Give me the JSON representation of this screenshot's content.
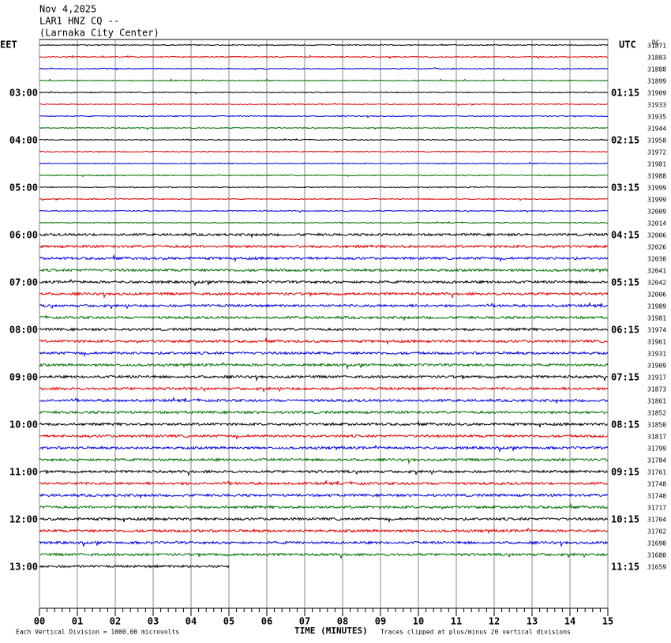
{
  "chart_data": {
    "type": "helicorder",
    "title_lines": [
      "Nov 4,2025",
      "LAR1 HNZ CQ --",
      "(Larnaka City Center)"
    ],
    "left_zone": "EET",
    "right_zone": "UTC",
    "corner_label": "DC",
    "left_labels": [
      "03:00",
      "04:00",
      "05:00",
      "06:00",
      "07:00",
      "08:00",
      "09:00",
      "10:00",
      "11:00",
      "12:00",
      "13:00"
    ],
    "right_labels": [
      "01:15",
      "02:15",
      "03:15",
      "04:15",
      "05:15",
      "06:15",
      "07:15",
      "08:15",
      "09:15",
      "10:15",
      "11:15"
    ],
    "trace_ids": [
      31871,
      31883,
      31888,
      31899,
      31909,
      31933,
      31935,
      31944,
      31958,
      31972,
      31981,
      31988,
      31999,
      31999,
      32009,
      32014,
      32006,
      32026,
      32030,
      32041,
      32042,
      32006,
      31989,
      31981,
      31974,
      31961,
      31931,
      31909,
      31917,
      31873,
      31861,
      31852,
      31850,
      31817,
      31799,
      31784,
      31761,
      31748,
      31740,
      31717,
      31704,
      31702,
      31690,
      31680,
      31659
    ],
    "colors": [
      "#000000",
      "#e00000",
      "#0000e0",
      "#007000"
    ],
    "last_trace_minutes": 5,
    "xlim": [
      0,
      15
    ],
    "xticks": [
      {
        "value": 0,
        "label": "00"
      },
      {
        "value": 1,
        "label": "01"
      },
      {
        "value": 2,
        "label": "02"
      },
      {
        "value": 3,
        "label": "03"
      },
      {
        "value": 4,
        "label": "04"
      },
      {
        "value": 5,
        "label": "05"
      },
      {
        "value": 6,
        "label": "06"
      },
      {
        "value": 7,
        "label": "07"
      },
      {
        "value": 8,
        "label": "08"
      },
      {
        "value": 9,
        "label": "09"
      },
      {
        "value": 10,
        "label": "10"
      },
      {
        "value": 11,
        "label": "11"
      },
      {
        "value": 12,
        "label": "12"
      },
      {
        "value": 13,
        "label": "13"
      },
      {
        "value": 14,
        "label": "14"
      },
      {
        "value": 15,
        "label": "15"
      }
    ],
    "x_label": "TIME (MINUTES)",
    "scale_note": "Each Vertical Division = 1000.00 microvolts",
    "clip_note": "Traces clipped at plus/minus 20 vertical divisions"
  }
}
